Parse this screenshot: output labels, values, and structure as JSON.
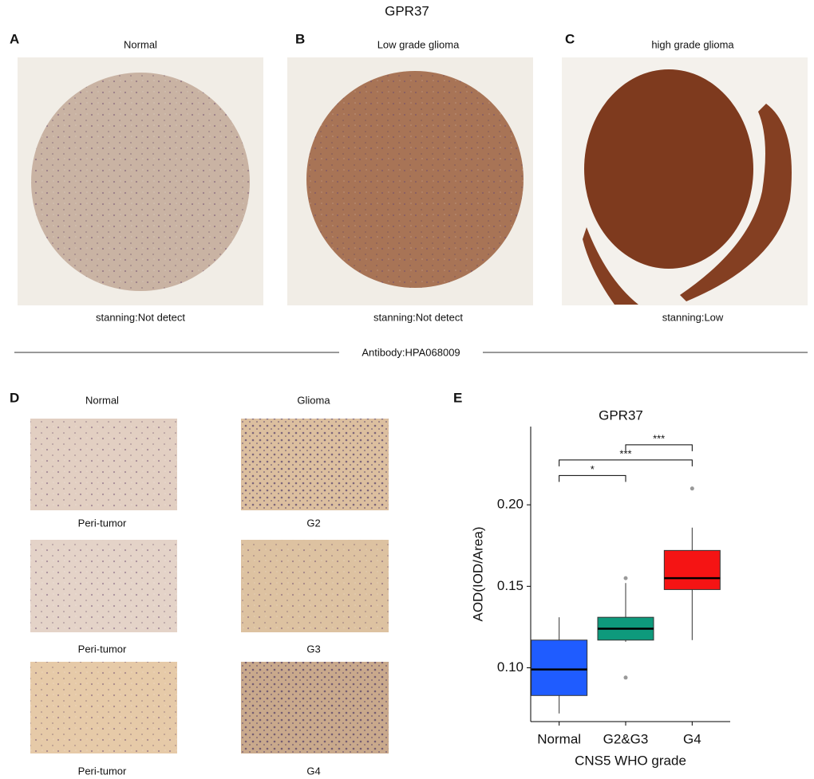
{
  "title": "GPR37",
  "panels": [
    {
      "letter": "A",
      "label": "Normal",
      "caption": "stanning:Not detect"
    },
    {
      "letter": "B",
      "label": "Low grade glioma",
      "caption": "stanning:Not detect"
    },
    {
      "letter": "C",
      "label": "high grade glioma",
      "caption": "stanning:Low"
    }
  ],
  "antibody": "Antibody:HPA068009",
  "panel_d": {
    "letter": "D",
    "columns": [
      "Normal",
      "Glioma"
    ],
    "left_labels": [
      "Peri-tumor",
      "Peri-tumor",
      "Peri-tumor"
    ],
    "right_labels": [
      "G2",
      "G3",
      "G4"
    ]
  },
  "panel_e_letter": "E",
  "chart_data": {
    "type": "box",
    "title": "GPR37",
    "categories": [
      "Normal",
      "G2&G3",
      "G4"
    ],
    "boxes": [
      {
        "min": 0.072,
        "q1": 0.083,
        "median": 0.099,
        "q3": 0.117,
        "max": 0.131,
        "outliers": [],
        "color": "#1f5cff"
      },
      {
        "min": 0.116,
        "q1": 0.117,
        "median": 0.124,
        "q3": 0.131,
        "max": 0.152,
        "outliers": [
          0.155,
          0.094
        ],
        "color": "#0e9a7c"
      },
      {
        "min": 0.117,
        "q1": 0.148,
        "median": 0.155,
        "q3": 0.172,
        "max": 0.186,
        "outliers": [
          0.21
        ],
        "color": "#f51414"
      }
    ],
    "ylim": [
      0.067,
      0.248
    ],
    "yticks": [
      {
        "value": 0.1,
        "label": "0.10"
      },
      {
        "value": 0.15,
        "label": "0.15"
      },
      {
        "value": 0.2,
        "label": "0.20"
      }
    ],
    "ylabel": "AOD(IOD/Area)",
    "xlabel": "CNS5 WHO grade",
    "annotations": [
      {
        "label": "*",
        "y": 0.218,
        "x": [
          0,
          1
        ]
      },
      {
        "label": "***",
        "y": 0.2275,
        "x": [
          0,
          2
        ]
      },
      {
        "label": "***",
        "y": 0.2368,
        "x": [
          1,
          2
        ]
      }
    ]
  }
}
